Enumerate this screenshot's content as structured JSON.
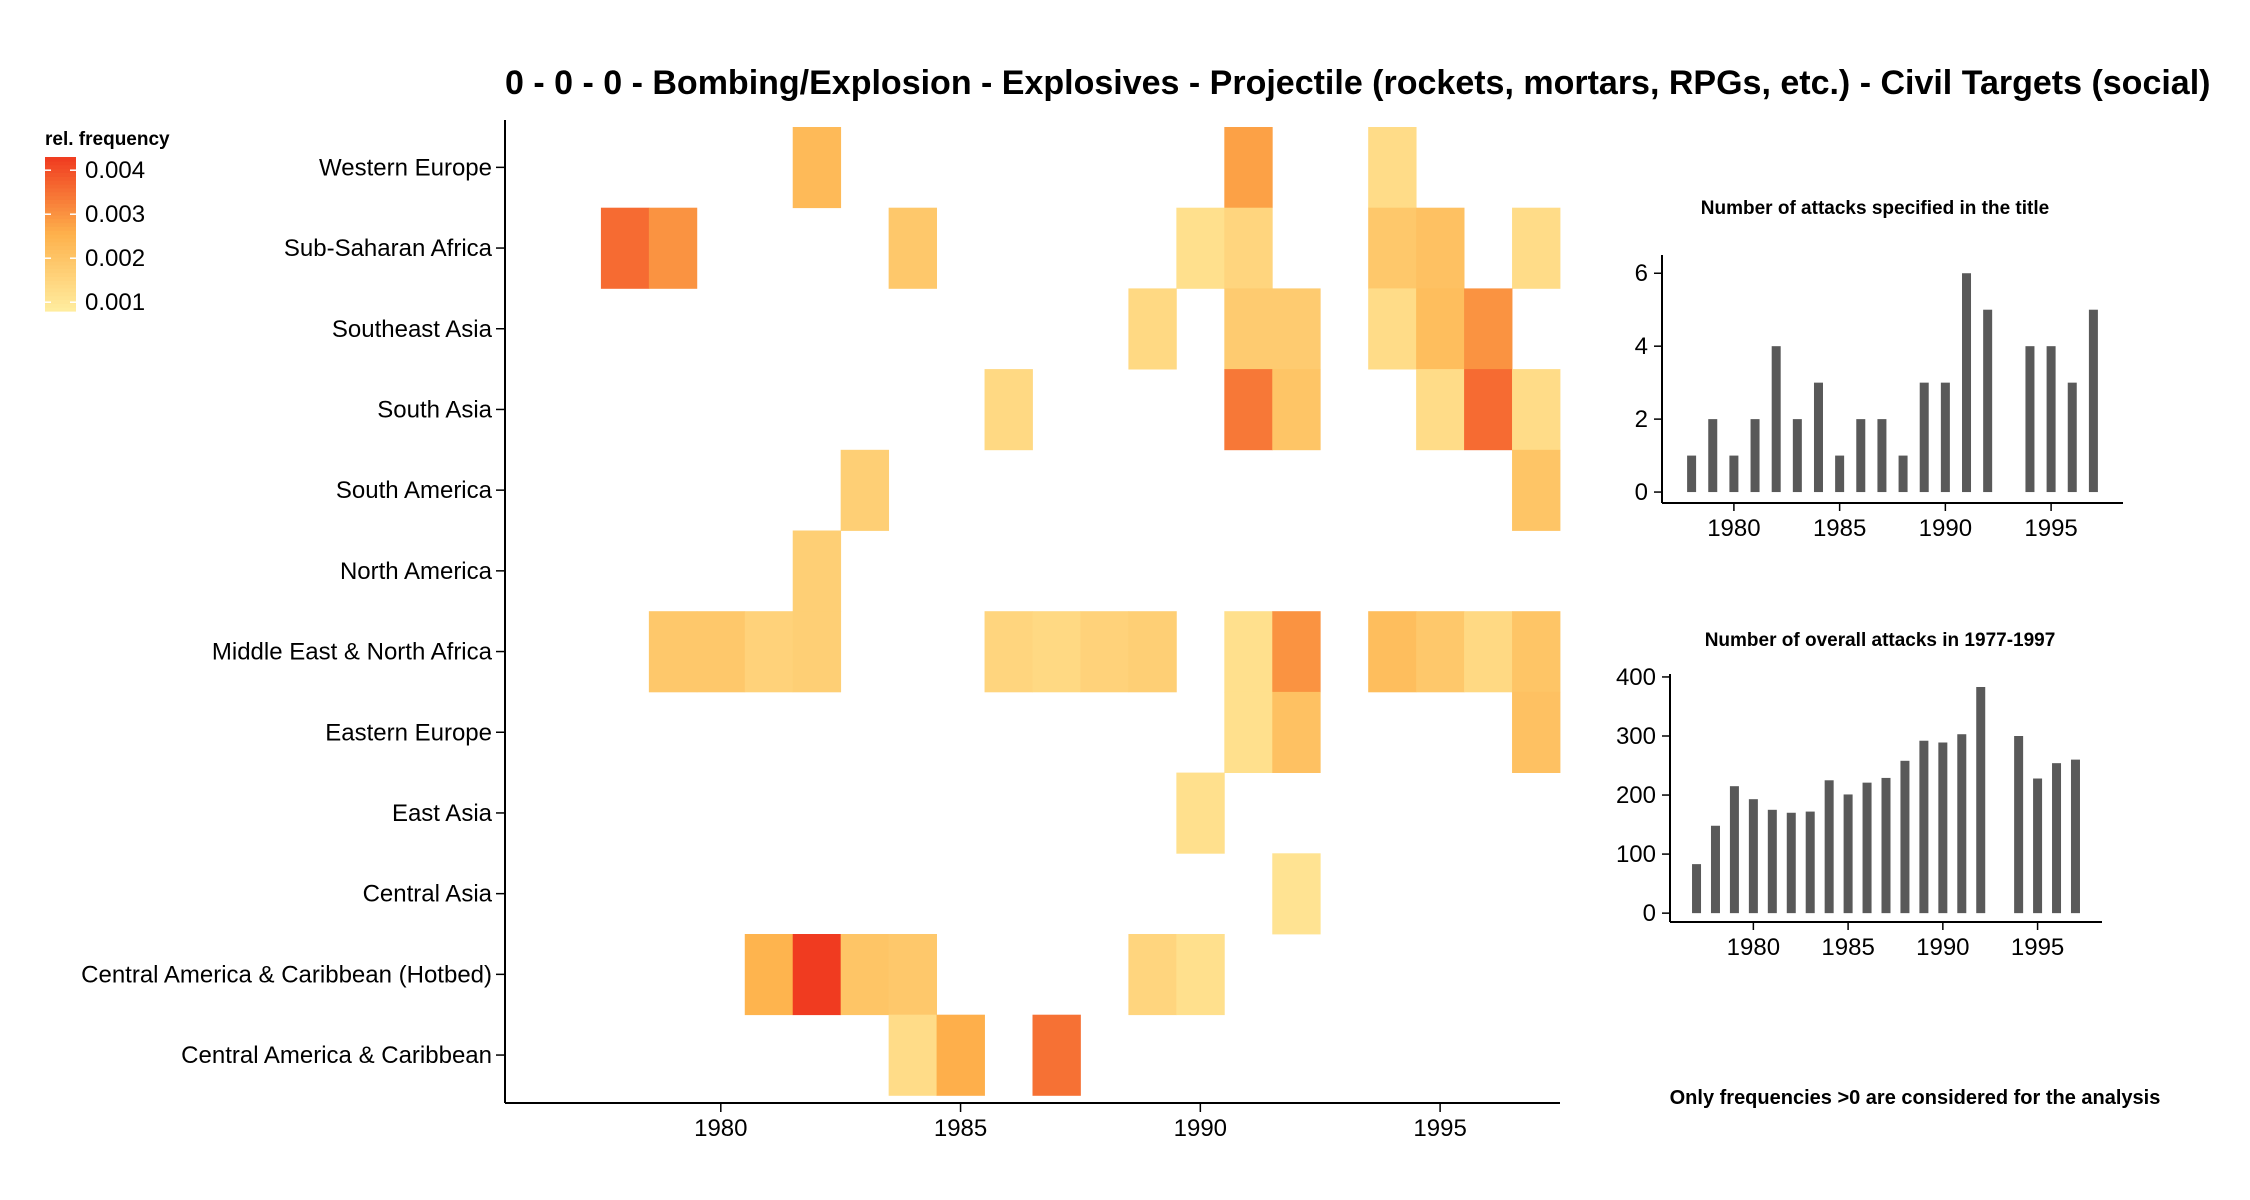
{
  "chart_data": [
    {
      "type": "heatmap",
      "title": "0 - 0 - 0 - Bombing/Explosion - Explosives - Projectile (rockets, mortars, RPGs, etc.) - Civil Targets (social)",
      "legend": {
        "title": "rel. frequency",
        "ticks": [
          "0.004",
          "0.003",
          "0.002",
          "0.001"
        ],
        "tick_values": [
          0.004,
          0.003,
          0.002,
          0.001
        ],
        "range": [
          0.0008,
          0.0043
        ],
        "placement": "top-left"
      },
      "colors": {
        "low": "#FFEDA0",
        "mid": "#FEB24C",
        "high": "#F03B20"
      },
      "rows": [
        "Western Europe",
        "Sub-Saharan Africa",
        "Southeast Asia",
        "South Asia",
        "South America",
        "North America",
        "Middle East & North Africa",
        "Eastern Europe",
        "East Asia",
        "Central Asia",
        "Central America & Caribbean (Hotbed)",
        "Central America & Caribbean"
      ],
      "xlim": [
        1975.5,
        1997.5
      ],
      "xticks": [
        "1980",
        "1985",
        "1990",
        "1995"
      ],
      "cells": [
        {
          "row": "Western Europe",
          "year": 1982,
          "value": 0.0023
        },
        {
          "row": "Western Europe",
          "year": 1991,
          "value": 0.0028
        },
        {
          "row": "Western Europe",
          "year": 1994,
          "value": 0.0013
        },
        {
          "row": "Sub-Saharan Africa",
          "year": 1978,
          "value": 0.0036
        },
        {
          "row": "Sub-Saharan Africa",
          "year": 1979,
          "value": 0.003
        },
        {
          "row": "Sub-Saharan Africa",
          "year": 1984,
          "value": 0.0019
        },
        {
          "row": "Sub-Saharan Africa",
          "year": 1990,
          "value": 0.0012
        },
        {
          "row": "Sub-Saharan Africa",
          "year": 1991,
          "value": 0.0015
        },
        {
          "row": "Sub-Saharan Africa",
          "year": 1994,
          "value": 0.0019
        },
        {
          "row": "Sub-Saharan Africa",
          "year": 1995,
          "value": 0.0021
        },
        {
          "row": "Sub-Saharan Africa",
          "year": 1997,
          "value": 0.0013
        },
        {
          "row": "Southeast Asia",
          "year": 1989,
          "value": 0.0014
        },
        {
          "row": "Southeast Asia",
          "year": 1991,
          "value": 0.0018
        },
        {
          "row": "Southeast Asia",
          "year": 1992,
          "value": 0.0018
        },
        {
          "row": "Southeast Asia",
          "year": 1994,
          "value": 0.0013
        },
        {
          "row": "Southeast Asia",
          "year": 1995,
          "value": 0.0022
        },
        {
          "row": "Southeast Asia",
          "year": 1996,
          "value": 0.003
        },
        {
          "row": "South Asia",
          "year": 1986,
          "value": 0.0014
        },
        {
          "row": "South Asia",
          "year": 1991,
          "value": 0.0034
        },
        {
          "row": "South Asia",
          "year": 1992,
          "value": 0.002
        },
        {
          "row": "South Asia",
          "year": 1995,
          "value": 0.0013
        },
        {
          "row": "South Asia",
          "year": 1996,
          "value": 0.0036
        },
        {
          "row": "South Asia",
          "year": 1997,
          "value": 0.0013
        },
        {
          "row": "South America",
          "year": 1983,
          "value": 0.0017
        },
        {
          "row": "South America",
          "year": 1997,
          "value": 0.002
        },
        {
          "row": "North America",
          "year": 1982,
          "value": 0.0017
        },
        {
          "row": "Middle East & North Africa",
          "year": 1979,
          "value": 0.0019
        },
        {
          "row": "Middle East & North Africa",
          "year": 1980,
          "value": 0.0019
        },
        {
          "row": "Middle East & North Africa",
          "year": 1981,
          "value": 0.0016
        },
        {
          "row": "Middle East & North Africa",
          "year": 1982,
          "value": 0.0017
        },
        {
          "row": "Middle East & North Africa",
          "year": 1986,
          "value": 0.0015
        },
        {
          "row": "Middle East & North Africa",
          "year": 1987,
          "value": 0.0014
        },
        {
          "row": "Middle East & North Africa",
          "year": 1988,
          "value": 0.0016
        },
        {
          "row": "Middle East & North Africa",
          "year": 1989,
          "value": 0.0017
        },
        {
          "row": "Middle East & North Africa",
          "year": 1991,
          "value": 0.0012
        },
        {
          "row": "Middle East & North Africa",
          "year": 1992,
          "value": 0.003
        },
        {
          "row": "Middle East & North Africa",
          "year": 1994,
          "value": 0.0022
        },
        {
          "row": "Middle East & North Africa",
          "year": 1995,
          "value": 0.0019
        },
        {
          "row": "Middle East & North Africa",
          "year": 1996,
          "value": 0.0014
        },
        {
          "row": "Middle East & North Africa",
          "year": 1997,
          "value": 0.002
        },
        {
          "row": "Eastern Europe",
          "year": 1991,
          "value": 0.0012
        },
        {
          "row": "Eastern Europe",
          "year": 1992,
          "value": 0.0021
        },
        {
          "row": "Eastern Europe",
          "year": 1997,
          "value": 0.0021
        },
        {
          "row": "East Asia",
          "year": 1990,
          "value": 0.0012
        },
        {
          "row": "Central Asia",
          "year": 1992,
          "value": 0.0011
        },
        {
          "row": "Central America & Caribbean (Hotbed)",
          "year": 1981,
          "value": 0.0025
        },
        {
          "row": "Central America & Caribbean (Hotbed)",
          "year": 1982,
          "value": 0.0043
        },
        {
          "row": "Central America & Caribbean (Hotbed)",
          "year": 1983,
          "value": 0.002
        },
        {
          "row": "Central America & Caribbean (Hotbed)",
          "year": 1984,
          "value": 0.0019
        },
        {
          "row": "Central America & Caribbean (Hotbed)",
          "year": 1989,
          "value": 0.0015
        },
        {
          "row": "Central America & Caribbean (Hotbed)",
          "year": 1990,
          "value": 0.0012
        },
        {
          "row": "Central America & Caribbean",
          "year": 1984,
          "value": 0.0013
        },
        {
          "row": "Central America & Caribbean",
          "year": 1985,
          "value": 0.0026
        },
        {
          "row": "Central America & Caribbean",
          "year": 1987,
          "value": 0.0035
        }
      ]
    },
    {
      "type": "bar",
      "title": "Number of attacks specified in the title",
      "x": [
        1978,
        1979,
        1980,
        1981,
        1982,
        1983,
        1984,
        1985,
        1986,
        1987,
        1988,
        1989,
        1990,
        1991,
        1992,
        1994,
        1995,
        1996,
        1997
      ],
      "values": [
        1,
        2,
        1,
        2,
        4,
        2,
        3,
        1,
        2,
        2,
        1,
        3,
        3,
        6,
        5,
        4,
        4,
        3,
        5
      ],
      "xlim": [
        1976.6,
        1998.4
      ],
      "ylim": [
        -0.3,
        6.5
      ],
      "xticks": [
        "1980",
        "1985",
        "1990",
        "1995"
      ],
      "yticks": [
        "0",
        "2",
        "4",
        "6"
      ],
      "ytick_values": [
        0,
        2,
        4,
        6
      ],
      "bar_color": "#595959"
    },
    {
      "type": "bar",
      "title": "Number of overall attacks in 1977-1997",
      "x": [
        1977,
        1978,
        1979,
        1980,
        1981,
        1982,
        1983,
        1984,
        1985,
        1986,
        1987,
        1988,
        1989,
        1990,
        1991,
        1992,
        1994,
        1995,
        1996,
        1997
      ],
      "values": [
        83,
        148,
        215,
        193,
        175,
        170,
        172,
        225,
        201,
        221,
        229,
        258,
        292,
        289,
        303,
        383,
        300,
        228,
        254,
        260
      ],
      "xlim": [
        1975.6,
        1998.4
      ],
      "ylim": [
        -15,
        405
      ],
      "xticks": [
        "1980",
        "1985",
        "1990",
        "1995"
      ],
      "yticks": [
        "0",
        "100",
        "200",
        "300",
        "400"
      ],
      "ytick_values": [
        0,
        100,
        200,
        300,
        400
      ],
      "bar_color": "#595959"
    }
  ],
  "footnote": "Only frequencies >0 are considered for the analysis"
}
